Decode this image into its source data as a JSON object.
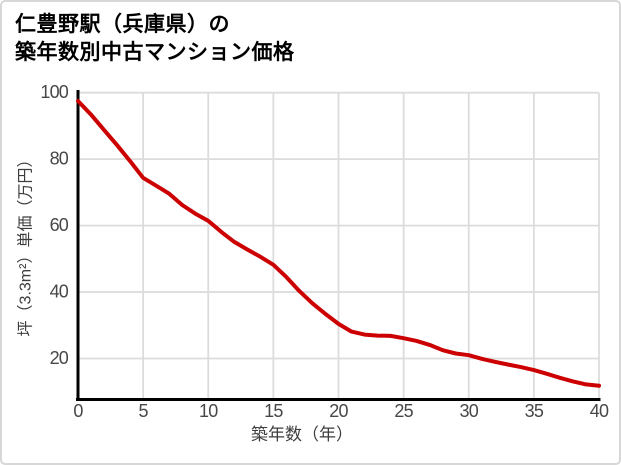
{
  "title": {
    "line1": "仁豊野駅（兵庫県）の",
    "line2": "築年数別中古マンション価格"
  },
  "chart_data": {
    "type": "line",
    "title": "仁豊野駅（兵庫県）の築年数別中古マンション価格",
    "xlabel": "築年数（年）",
    "ylabel": "坪（3.3m²）単価（万円）",
    "x": [
      0,
      1,
      2,
      3,
      4,
      5,
      6,
      7,
      8,
      9,
      10,
      11,
      12,
      13,
      14,
      15,
      16,
      17,
      18,
      19,
      20,
      21,
      22,
      23,
      24,
      25,
      26,
      27,
      28,
      29,
      30,
      31,
      32,
      33,
      34,
      35,
      36,
      37,
      38,
      39,
      40
    ],
    "values": [
      97.5,
      93.4,
      88.8,
      84.2,
      79.4,
      74.4,
      72.0,
      69.6,
      66.2,
      63.6,
      61.4,
      58.1,
      55.1,
      52.8,
      50.6,
      48.2,
      44.5,
      40.3,
      36.6,
      33.4,
      30.4,
      28.1,
      27.2,
      26.9,
      26.8,
      26.1,
      25.3,
      24.1,
      22.5,
      21.5,
      21.0,
      19.9,
      19.0,
      18.2,
      17.4,
      16.5,
      15.4,
      14.2,
      13.1,
      12.2,
      11.8
    ],
    "x_ticks": [
      0,
      5,
      10,
      15,
      20,
      25,
      30,
      35,
      40
    ],
    "y_ticks": [
      20,
      40,
      60,
      80,
      100
    ],
    "xlim": [
      0,
      40
    ],
    "ylim": [
      7.8,
      100.3
    ],
    "grid": true,
    "legend": "none",
    "line_color": "#cc0000",
    "grid_color": "#dcdcdc",
    "axis_color": "#000000",
    "tick_label_color": "#474747",
    "background": "#ffffff",
    "border_color": "#d7d7d7"
  }
}
